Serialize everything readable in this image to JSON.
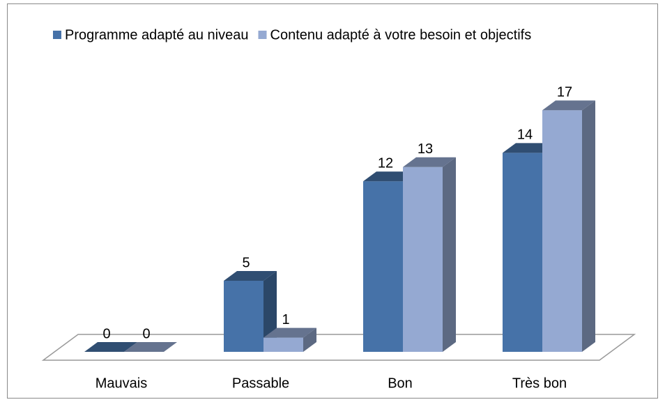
{
  "chart_data": {
    "type": "bar3d",
    "categories": [
      "Mauvais",
      "Passable",
      "Bon",
      "Très bon"
    ],
    "series": [
      {
        "name": "Programme adapté au niveau",
        "color": "#4672a8",
        "values": [
          0,
          5,
          12,
          14
        ]
      },
      {
        "name": "Contenu adapté à votre besoin et objectifs",
        "color": "#95a9d2",
        "values": [
          0,
          1,
          13,
          17
        ]
      }
    ],
    "ylim": [
      0,
      20
    ],
    "legend": "top"
  }
}
